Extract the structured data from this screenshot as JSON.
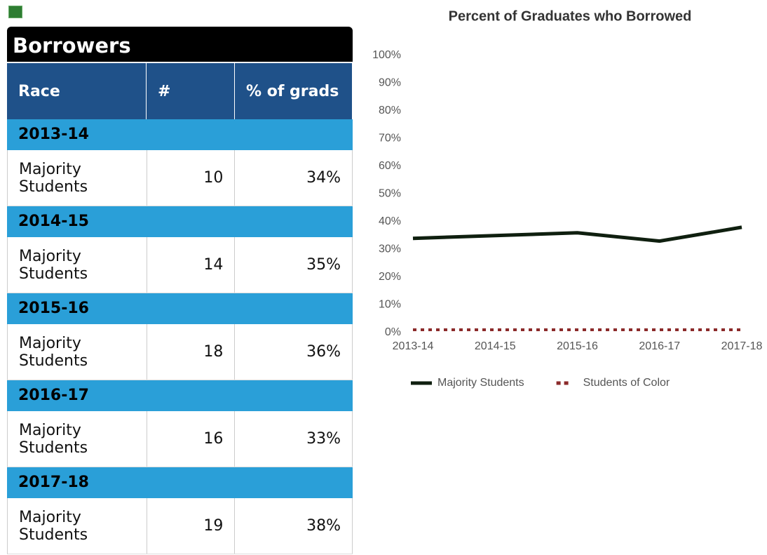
{
  "table": {
    "title": "Borrowers",
    "headers": [
      "Race",
      "#",
      "% of grads"
    ],
    "groups": [
      {
        "year": "2013-14",
        "race": "Majority Students",
        "count": 10,
        "pct": "34%"
      },
      {
        "year": "2014-15",
        "race": "Majority Students",
        "count": 14,
        "pct": "35%"
      },
      {
        "year": "2015-16",
        "race": "Majority Students",
        "count": 18,
        "pct": "36%"
      },
      {
        "year": "2016-17",
        "race": "Majority Students",
        "count": 16,
        "pct": "33%"
      },
      {
        "year": "2017-18",
        "race": "Majority Students",
        "count": 19,
        "pct": "38%"
      }
    ]
  },
  "chart_data": {
    "type": "line",
    "title": "Percent of Graduates who Borrowed",
    "categories": [
      "2013-14",
      "2014-15",
      "2015-16",
      "2016-17",
      "2017-18"
    ],
    "series": [
      {
        "name": "Majority Students",
        "color": "#0f1f0f",
        "values": [
          34,
          35,
          36,
          33,
          38
        ]
      },
      {
        "name": "Students of Color",
        "color": "#8b2a2a",
        "values": [
          1,
          1,
          1,
          1,
          1
        ]
      }
    ],
    "ylim": [
      0,
      100
    ],
    "yticks": [
      {
        "value": 0,
        "label": "0%"
      },
      {
        "value": 10,
        "label": "10%"
      },
      {
        "value": 20,
        "label": "20%"
      },
      {
        "value": 30,
        "label": "30%"
      },
      {
        "value": 40,
        "label": "40%"
      },
      {
        "value": 50,
        "label": "50%"
      },
      {
        "value": 60,
        "label": "60%"
      },
      {
        "value": 70,
        "label": "70%"
      },
      {
        "value": 80,
        "label": "80%"
      },
      {
        "value": 90,
        "label": "90%"
      },
      {
        "value": 100,
        "label": "100%"
      }
    ],
    "grid": false,
    "legend": "bottom"
  }
}
